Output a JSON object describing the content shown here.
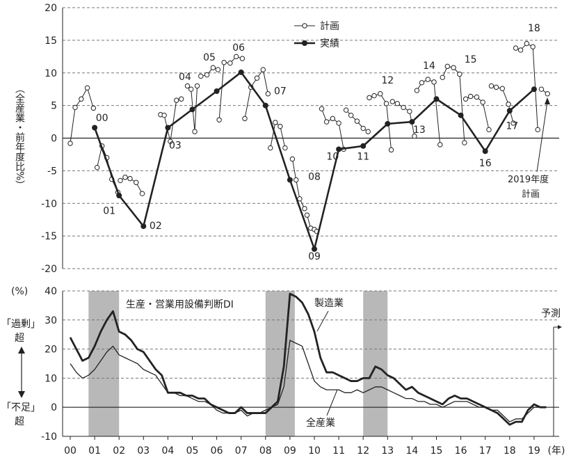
{
  "chart_data": [
    {
      "type": "line",
      "ylabel": "（全産業・前年度比%）",
      "ylim": [
        -20,
        20
      ],
      "yticks": [
        "20",
        "15",
        "10",
        "5",
        "0",
        "-5",
        "-10",
        "-15",
        "-20"
      ],
      "grid": true,
      "legend_position": "top-center",
      "series": [
        {
          "name": "計画",
          "marker": "open-circle",
          "segments": [
            {
              "x": [
                0.0,
                0.2,
                0.45,
                0.7,
                0.95
              ],
              "y": [
                -0.8,
                4.7,
                6.0,
                7.7,
                4.6
              ]
            },
            {
              "x": [
                1.1,
                1.3,
                1.5,
                1.7,
                1.95
              ],
              "y": [
                -4.5,
                -1.2,
                -3.0,
                -6.3,
                -8.3
              ]
            },
            {
              "x": [
                2.05,
                2.25,
                2.45,
                2.7,
                2.95
              ],
              "y": [
                -6.5,
                -6.0,
                -6.2,
                -6.8,
                -8.5
              ]
            },
            {
              "x": [
                3.7,
                3.85,
                4.1,
                4.35,
                4.55
              ],
              "y": [
                3.6,
                3.5,
                -0.5,
                5.8,
                6.0
              ]
            },
            {
              "x": [
                4.8,
                4.95,
                5.1,
                5.2
              ],
              "y": [
                8.0,
                7.5,
                1.0,
                8.0
              ]
            },
            {
              "x": [
                5.35,
                5.6,
                5.85,
                6.05
              ],
              "y": [
                9.5,
                9.7,
                10.8,
                10.5
              ]
            },
            {
              "x": [
                6.1,
                6.3,
                6.55,
                6.8,
                7.05
              ],
              "y": [
                2.8,
                11.6,
                11.5,
                12.5,
                12.2
              ]
            },
            {
              "x": [
                7.15,
                7.4,
                7.65,
                7.9,
                8.1
              ],
              "y": [
                3.0,
                7.8,
                9.2,
                10.5,
                6.8
              ]
            },
            {
              "x": [
                8.2,
                8.4,
                8.6,
                8.8
              ],
              "y": [
                -1.5,
                2.4,
                1.8,
                -1.5
              ]
            },
            {
              "x": [
                9.1,
                9.25,
                9.4,
                9.6
              ],
              "y": [
                -3.2,
                -6.4,
                -9.3,
                -10.8
              ]
            },
            {
              "x": [
                9.7,
                9.85,
                10.0,
                10.1
              ],
              "y": [
                -11.8,
                -13.8,
                -14.0,
                -14.3
              ]
            },
            {
              "x": [
                10.3,
                10.5,
                10.75,
                11.0,
                11.2
              ],
              "y": [
                4.5,
                2.5,
                3.0,
                2.3,
                -1.7
              ]
            },
            {
              "x": [
                11.3,
                11.5,
                11.75,
                12.0,
                12.2
              ],
              "y": [
                4.3,
                3.5,
                2.6,
                1.5,
                1.0
              ]
            },
            {
              "x": [
                12.25,
                12.45,
                12.7,
                12.95,
                13.15
              ],
              "y": [
                6.2,
                6.5,
                6.8,
                5.3,
                -1.8
              ]
            },
            {
              "x": [
                13.2,
                13.4,
                13.65,
                13.9,
                14.1
              ],
              "y": [
                5.6,
                5.3,
                4.7,
                4.1,
                0.3
              ]
            },
            {
              "x": [
                14.2,
                14.4,
                14.65,
                14.9,
                15.15
              ],
              "y": [
                7.3,
                8.5,
                9.0,
                8.6,
                -1.0
              ]
            },
            {
              "x": [
                15.25,
                15.45,
                15.7,
                15.95,
                16.15
              ],
              "y": [
                9.3,
                11.0,
                10.8,
                9.8,
                -0.7
              ]
            },
            {
              "x": [
                16.2,
                16.4,
                16.65,
                16.9,
                17.15
              ],
              "y": [
                6.0,
                6.4,
                6.3,
                5.5,
                1.3
              ]
            },
            {
              "x": [
                17.25,
                17.45,
                17.7,
                17.95,
                18.15
              ],
              "y": [
                8.0,
                7.8,
                7.6,
                5.2,
                2.3
              ]
            },
            {
              "x": [
                18.25,
                18.45,
                18.7,
                18.95,
                19.15
              ],
              "y": [
                13.8,
                13.5,
                14.5,
                14.0,
                1.3
              ]
            },
            {
              "x": [
                19.3,
                19.55
              ],
              "y": [
                7.5,
                6.8
              ]
            }
          ]
        },
        {
          "name": "実績",
          "marker": "filled-circle",
          "x": [
            1.0,
            2.0,
            3.0,
            4.0,
            5.0,
            6.0,
            7.0,
            8.0,
            9.0,
            10.0,
            11.0,
            12.0,
            13.0,
            14.0,
            15.0,
            16.0,
            17.0,
            18.0,
            19.0
          ],
          "y": [
            1.6,
            -8.8,
            -13.5,
            1.6,
            4.4,
            7.2,
            10.1,
            5.0,
            -6.4,
            -17.0,
            -1.7,
            -1.2,
            2.2,
            2.5,
            6.0,
            3.5,
            -2.0,
            4.2,
            7.5
          ]
        }
      ],
      "annotations": [
        {
          "text": "00",
          "x": 1.3,
          "y": 2.6
        },
        {
          "text": "01",
          "x": 1.6,
          "y": -11.6
        },
        {
          "text": "02",
          "x": 3.5,
          "y": -13.9
        },
        {
          "text": "03",
          "x": 4.3,
          "y": -1.6
        },
        {
          "text": "04",
          "x": 4.7,
          "y": 8.9
        },
        {
          "text": "05",
          "x": 5.7,
          "y": 11.9
        },
        {
          "text": "06",
          "x": 6.9,
          "y": 13.4
        },
        {
          "text": "07",
          "x": 8.6,
          "y": 6.7
        },
        {
          "text": "08",
          "x": 10.0,
          "y": -6.4
        },
        {
          "text": "09",
          "x": 10.0,
          "y": -18.6
        },
        {
          "text": "10",
          "x": 10.75,
          "y": -3.3
        },
        {
          "text": "11",
          "x": 12.0,
          "y": -3.3
        },
        {
          "text": "12",
          "x": 13.0,
          "y": 8.4
        },
        {
          "text": "13",
          "x": 14.3,
          "y": 0.8
        },
        {
          "text": "14",
          "x": 14.7,
          "y": 10.6
        },
        {
          "text": "15",
          "x": 16.4,
          "y": 11.6
        },
        {
          "text": "16",
          "x": 17.0,
          "y": -4.3
        },
        {
          "text": "17",
          "x": 18.1,
          "y": 1.4
        },
        {
          "text": "18",
          "x": 19.0,
          "y": 16.4
        }
      ],
      "note_lines": [
        "2019年度",
        "計画"
      ]
    },
    {
      "type": "line",
      "title": "生産・営業用設備判断DI",
      "ylabel": "(%)",
      "ylim": [
        -10,
        40
      ],
      "yticks": [
        "40",
        "30",
        "20",
        "10",
        "0",
        "-10"
      ],
      "left_labels": {
        "top": [
          "「過剰」",
          "超"
        ],
        "bottom": [
          "「不足」",
          "超"
        ]
      },
      "xlabel": "(年)",
      "categories": [
        "00",
        "01",
        "02",
        "03",
        "04",
        "05",
        "06",
        "07",
        "08",
        "09",
        "10",
        "11",
        "12",
        "13",
        "14",
        "15",
        "16",
        "17",
        "18",
        "19"
      ],
      "shaded_periods": [
        [
          0.75,
          2.0
        ],
        [
          8.0,
          9.2
        ],
        [
          12.0,
          13.0
        ]
      ],
      "forecast_label": "予測",
      "forecast_x": 19.8,
      "series": [
        {
          "name": "製造業",
          "x": [
            0.0,
            0.25,
            0.5,
            0.75,
            1.0,
            1.25,
            1.5,
            1.75,
            2.0,
            2.25,
            2.5,
            2.75,
            3.0,
            3.25,
            3.5,
            3.75,
            4.0,
            4.25,
            4.5,
            4.75,
            5.0,
            5.25,
            5.5,
            5.75,
            6.0,
            6.25,
            6.5,
            6.75,
            7.0,
            7.25,
            7.5,
            7.75,
            8.0,
            8.25,
            8.5,
            8.75,
            9.0,
            9.25,
            9.5,
            9.75,
            10.0,
            10.25,
            10.5,
            10.75,
            11.0,
            11.25,
            11.5,
            11.75,
            12.0,
            12.25,
            12.5,
            12.75,
            13.0,
            13.25,
            13.5,
            13.75,
            14.0,
            14.25,
            14.5,
            14.75,
            15.0,
            15.25,
            15.5,
            15.75,
            16.0,
            16.25,
            16.5,
            16.75,
            17.0,
            17.25,
            17.5,
            17.75,
            18.0,
            18.25,
            18.5,
            18.75,
            19.0,
            19.25,
            19.5
          ],
          "y": [
            24,
            20,
            16,
            17,
            21,
            26,
            30,
            33,
            26,
            25,
            23,
            20,
            19,
            16,
            13,
            11,
            5,
            5,
            5,
            4,
            4,
            3,
            3,
            1,
            0,
            -1,
            -2,
            -2,
            0,
            -2,
            -2,
            -2,
            -2,
            0,
            2,
            14,
            39,
            38,
            36,
            32,
            26,
            17,
            12,
            12,
            11,
            10,
            9,
            9,
            10,
            10,
            14,
            13,
            11,
            10,
            8,
            6,
            7,
            5,
            4,
            3,
            2,
            1,
            3,
            4,
            3,
            3,
            2,
            1,
            0,
            -1,
            -2,
            -4,
            -6,
            -5,
            -5,
            -1,
            1,
            0,
            0
          ]
        },
        {
          "name": "全産業",
          "x": [
            0.0,
            0.25,
            0.5,
            0.75,
            1.0,
            1.25,
            1.5,
            1.75,
            2.0,
            2.25,
            2.5,
            2.75,
            3.0,
            3.25,
            3.5,
            3.75,
            4.0,
            4.25,
            4.5,
            4.75,
            5.0,
            5.25,
            5.5,
            5.75,
            6.0,
            6.25,
            6.5,
            6.75,
            7.0,
            7.25,
            7.5,
            7.75,
            8.0,
            8.25,
            8.5,
            8.75,
            9.0,
            9.25,
            9.5,
            9.75,
            10.0,
            10.25,
            10.5,
            10.75,
            11.0,
            11.25,
            11.5,
            11.75,
            12.0,
            12.25,
            12.5,
            12.75,
            13.0,
            13.25,
            13.5,
            13.75,
            14.0,
            14.25,
            14.5,
            14.75,
            15.0,
            15.25,
            15.5,
            15.75,
            16.0,
            16.25,
            16.5,
            16.75,
            17.0,
            17.25,
            17.5,
            17.75,
            18.0,
            18.25,
            18.5,
            18.75,
            19.0,
            19.25,
            19.5
          ],
          "y": [
            15,
            12,
            10,
            11,
            13,
            16,
            19,
            21,
            18,
            17,
            16,
            15,
            13,
            12,
            11,
            8,
            5,
            5,
            4,
            4,
            3,
            2,
            2,
            1,
            -1,
            -2,
            -2,
            -2,
            -1,
            -3,
            -2,
            -2,
            -1,
            0,
            1,
            7,
            23,
            22,
            21,
            15,
            9,
            7,
            6,
            6,
            6,
            5,
            5,
            6,
            5,
            6,
            7,
            7,
            6,
            5,
            4,
            3,
            3,
            2,
            2,
            1,
            1,
            0,
            1,
            2,
            2,
            2,
            1,
            0,
            0,
            -1,
            -1,
            -3,
            -5,
            -4,
            -4,
            -2,
            0,
            0,
            0
          ]
        }
      ]
    }
  ]
}
